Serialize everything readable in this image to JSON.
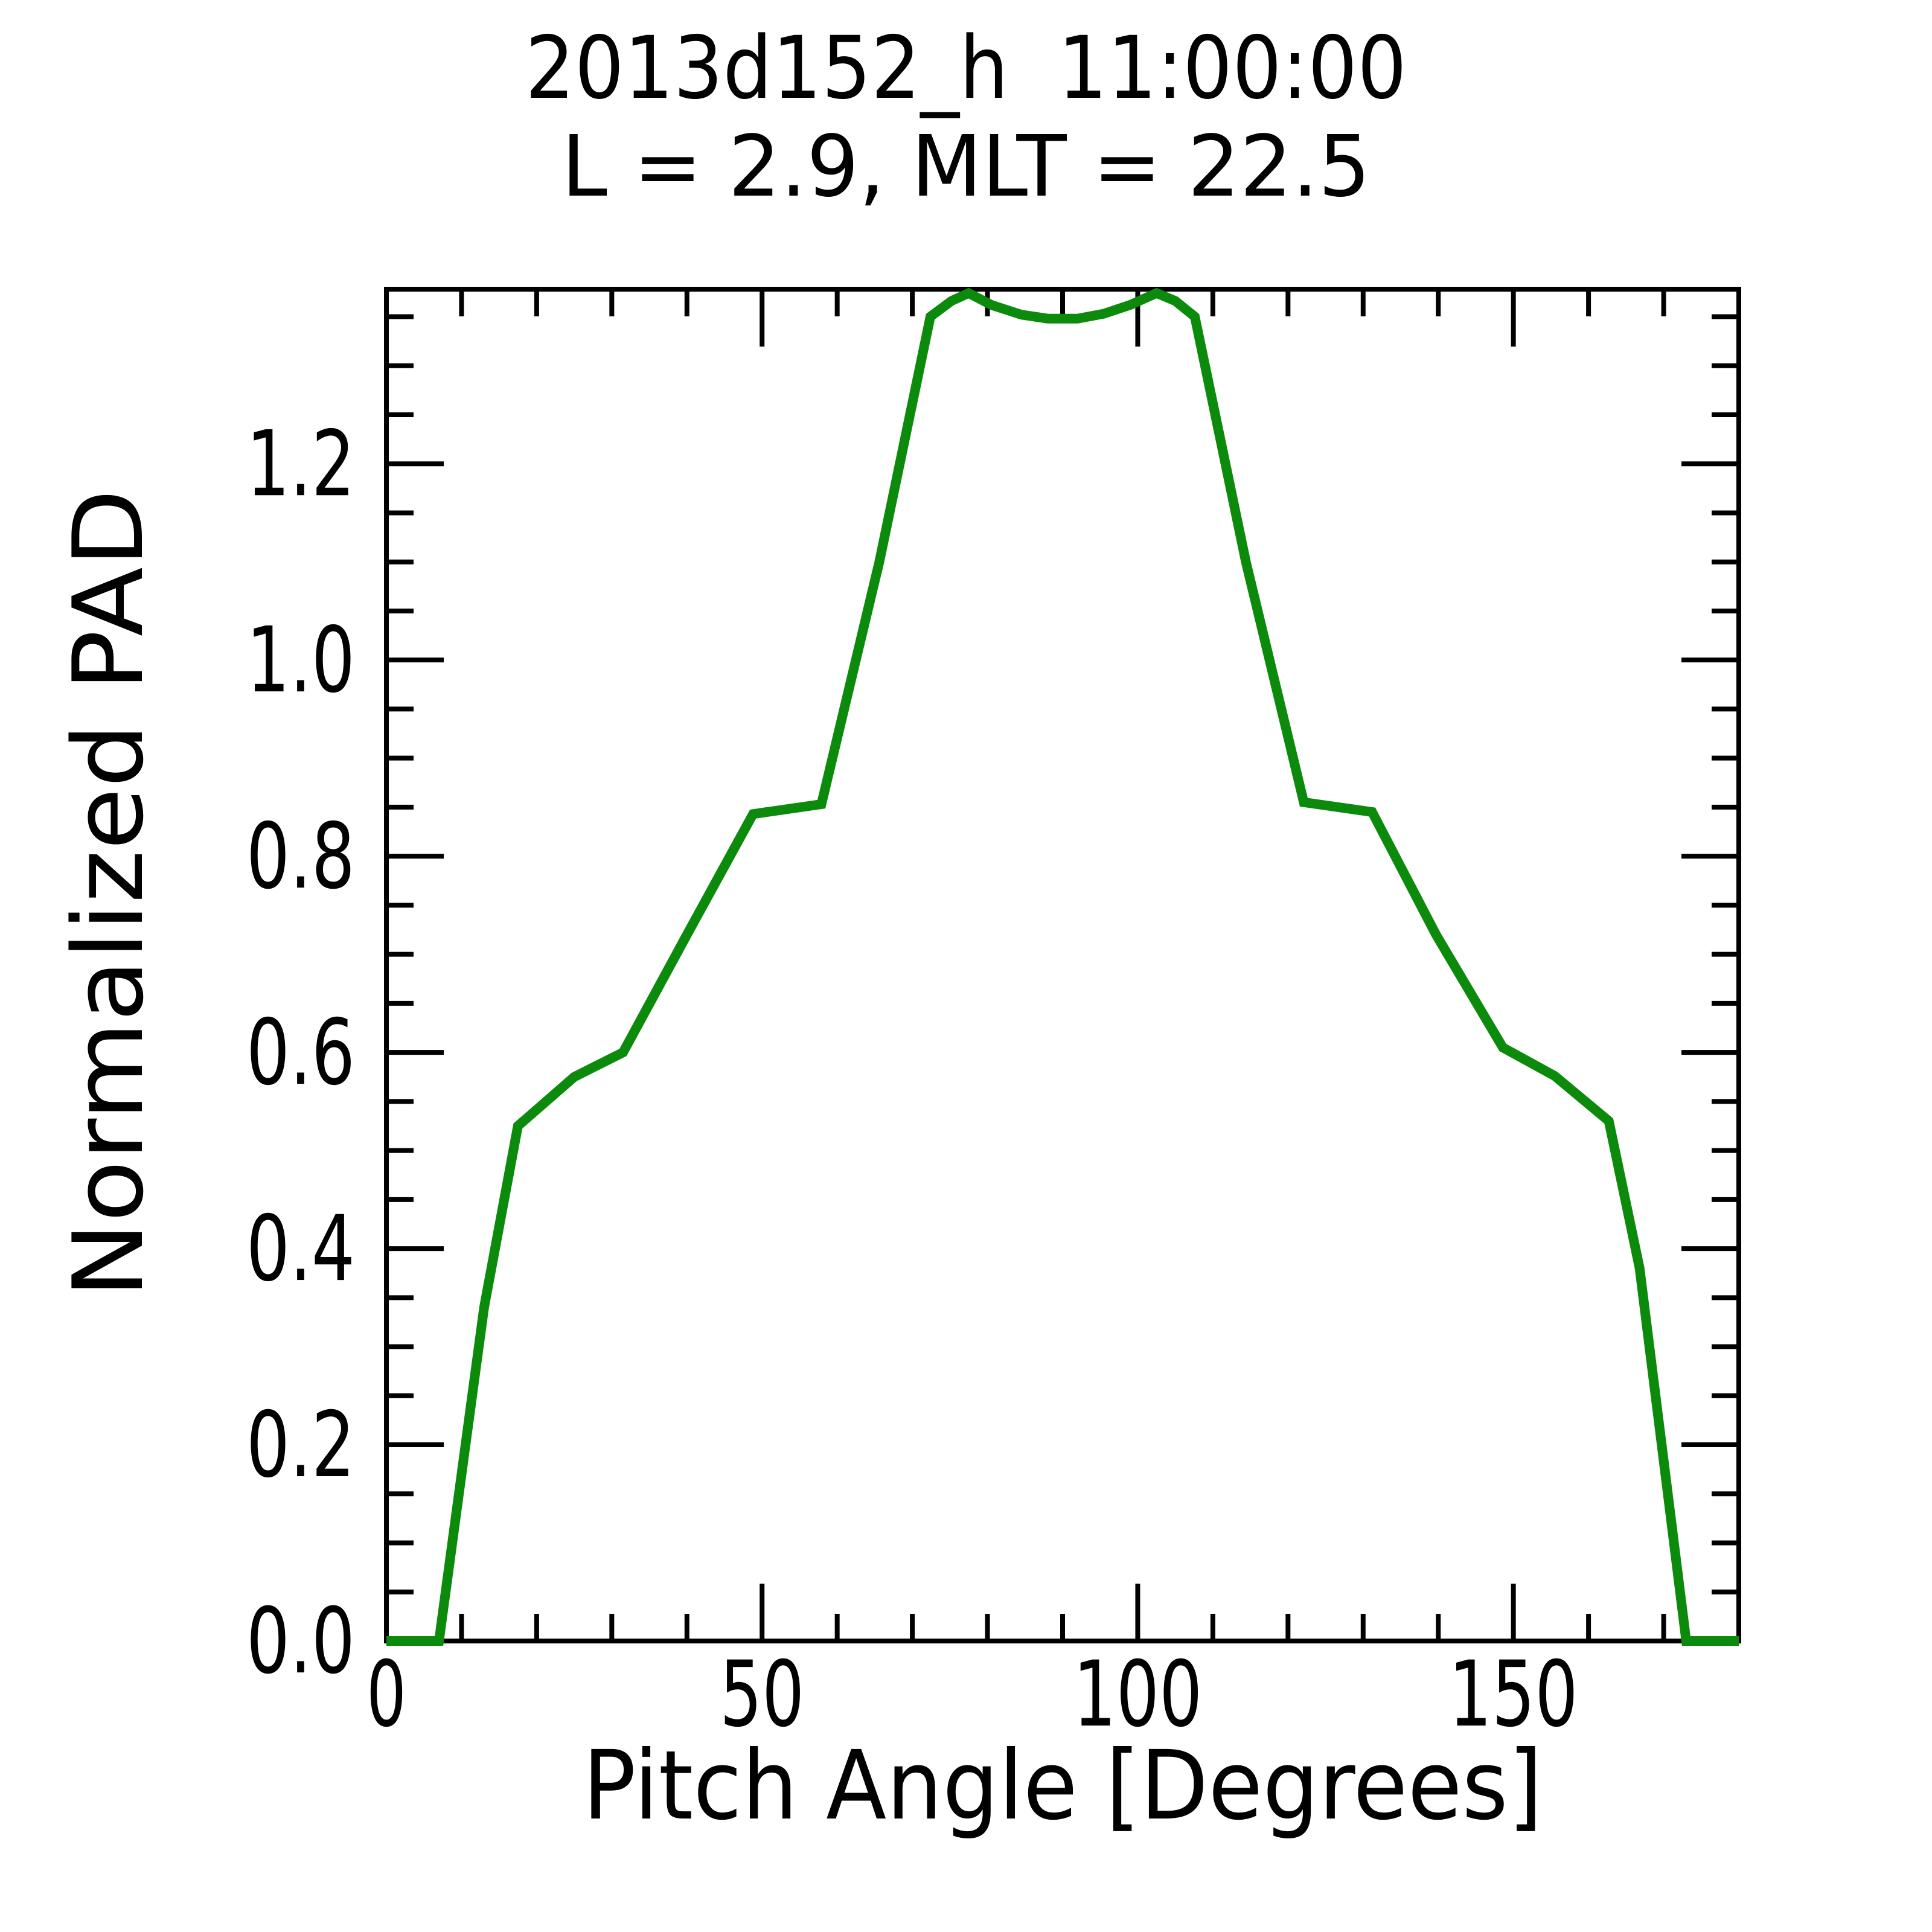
{
  "chart_data": {
    "type": "line",
    "title": "2013d152_h  11:00:00",
    "subtitle": "L = 2.9, MLT = 22.5",
    "xlabel": "Pitch Angle [Degrees]",
    "ylabel": "Normalized PAD",
    "xlim": [
      0,
      180
    ],
    "ylim": [
      0,
      1.378
    ],
    "grid": false,
    "legend": "none",
    "line_color": "#0c8a0c",
    "frame_color": "#000000",
    "x_major_ticks": [
      0,
      50,
      100,
      150
    ],
    "x_tick_labels": [
      "0",
      "50",
      "100",
      "150"
    ],
    "x_minor_step": 10,
    "y_major_ticks": [
      0.0,
      0.2,
      0.4,
      0.6,
      0.8,
      1.0,
      1.2
    ],
    "y_tick_labels": [
      "0.0",
      "0.2",
      "0.4",
      "0.6",
      "0.8",
      "1.0",
      "1.2"
    ],
    "y_minor_step": 0.05,
    "series": [
      {
        "name": "Normalized PAD",
        "x": [
          0,
          7,
          13,
          17.5,
          25,
          31.5,
          40,
          48.8,
          57.9,
          65.6,
          72.4,
          75.2,
          77.5,
          80.5,
          84.5,
          88,
          92,
          95.5,
          99,
          102.5,
          105,
          107.6,
          114.4,
          122.1,
          131.2,
          139.7,
          148.6,
          155.5,
          162.7,
          166.8,
          173,
          180
        ],
        "y": [
          0,
          0,
          0.34,
          0.525,
          0.575,
          0.6,
          0.72,
          0.843,
          0.853,
          1.1,
          1.35,
          1.366,
          1.374,
          1.362,
          1.352,
          1.348,
          1.348,
          1.353,
          1.362,
          1.374,
          1.366,
          1.35,
          1.1,
          0.855,
          0.845,
          0.72,
          0.605,
          0.576,
          0.53,
          0.38,
          0,
          0
        ]
      }
    ]
  }
}
